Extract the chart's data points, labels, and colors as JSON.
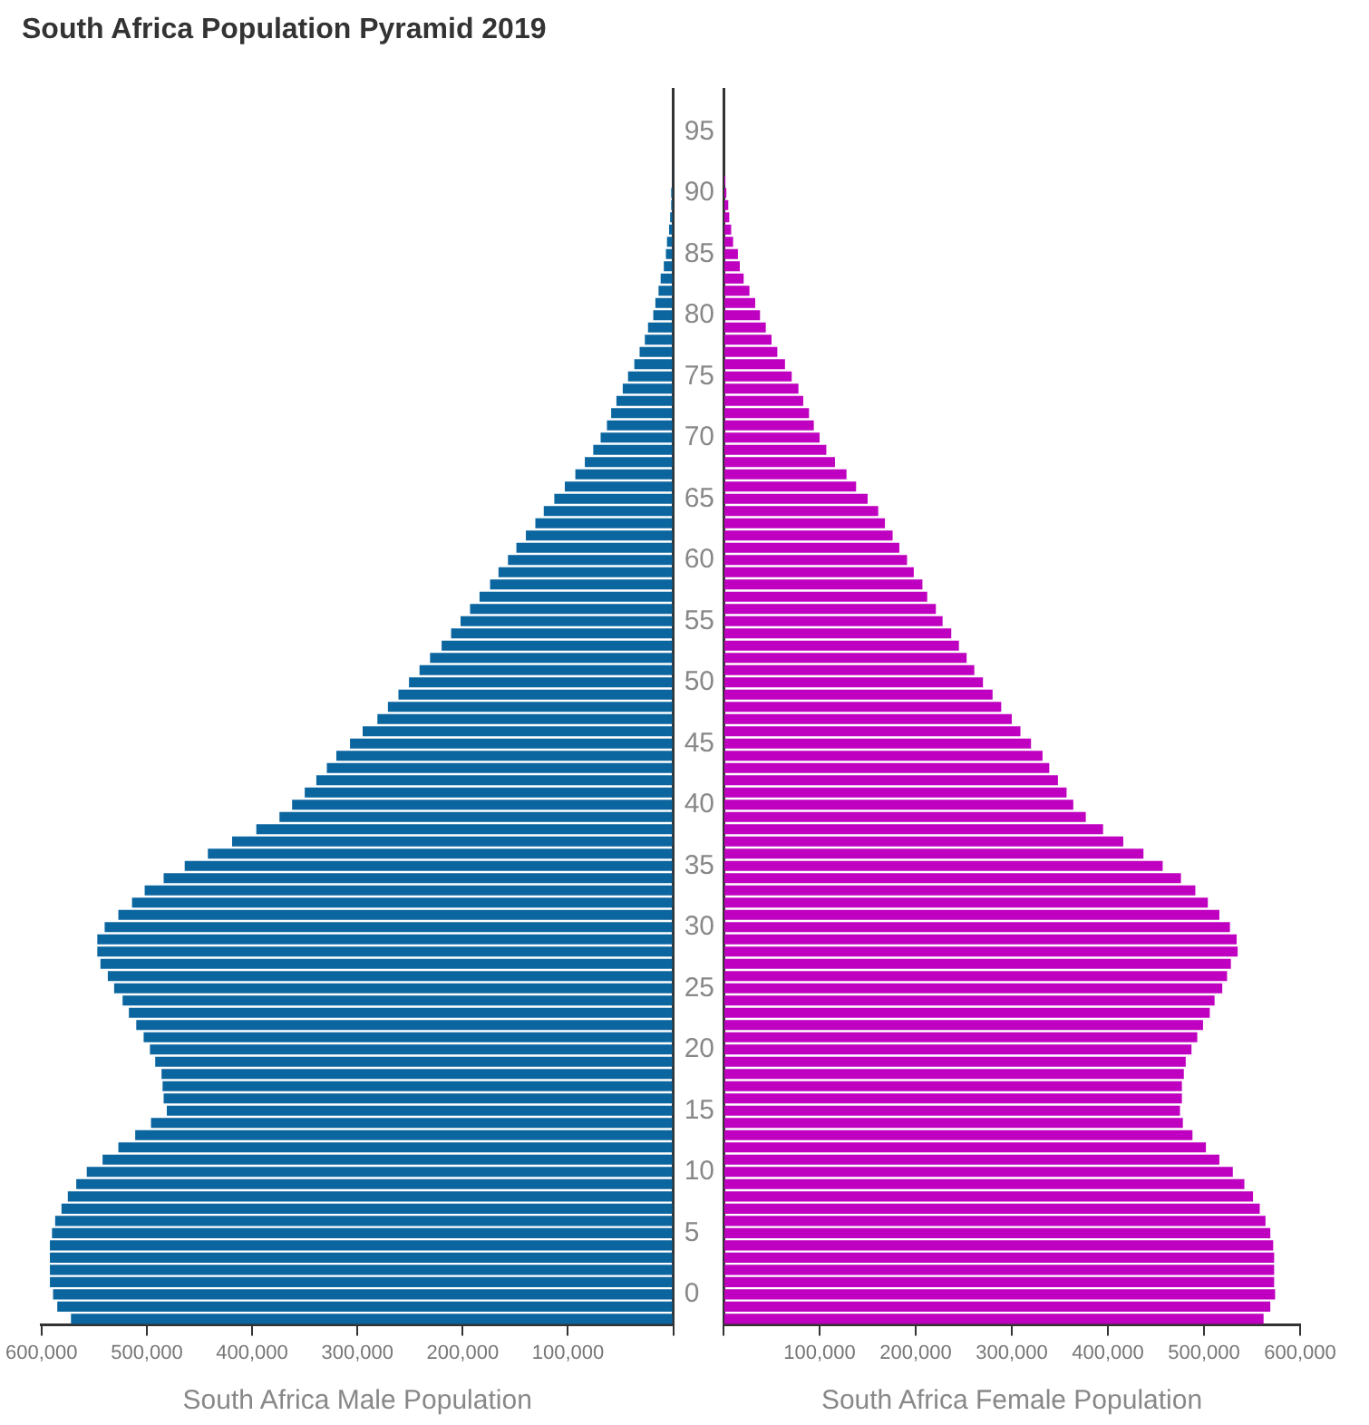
{
  "chart_data": [
    {
      "type": "bar",
      "orientation": "horizontal",
      "title": "South Africa Population Pyramid 2019",
      "xlabel": "South Africa Male Population",
      "color": "#0b66a0",
      "legend": false,
      "grid": false,
      "categories": [
        null,
        null,
        null,
        "95",
        null,
        null,
        null,
        null,
        "90",
        null,
        null,
        null,
        null,
        "85",
        null,
        null,
        null,
        null,
        "80",
        null,
        null,
        null,
        null,
        "75",
        null,
        null,
        null,
        null,
        "70",
        null,
        null,
        null,
        null,
        "65",
        null,
        null,
        null,
        null,
        "60",
        null,
        null,
        null,
        null,
        "55",
        null,
        null,
        null,
        null,
        "50",
        null,
        null,
        null,
        null,
        "45",
        null,
        null,
        null,
        null,
        "40",
        null,
        null,
        null,
        null,
        "35",
        null,
        null,
        null,
        null,
        "30",
        null,
        null,
        null,
        null,
        "25",
        null,
        null,
        null,
        null,
        "20",
        null,
        null,
        null,
        null,
        "15",
        null,
        null,
        null,
        null,
        "10",
        null,
        null,
        null,
        null,
        "5",
        null,
        null,
        null,
        null,
        "0",
        null,
        null
      ],
      "values": [
        0,
        0,
        0,
        0,
        0,
        0,
        1000,
        1000,
        2000,
        2000,
        3000,
        4000,
        6000,
        7000,
        9000,
        12000,
        14000,
        17000,
        19000,
        24000,
        27000,
        32000,
        37000,
        43000,
        48000,
        54000,
        59000,
        63000,
        69000,
        76000,
        84000,
        93000,
        103000,
        113000,
        123000,
        131000,
        140000,
        149000,
        157000,
        166000,
        174000,
        184000,
        193000,
        202000,
        211000,
        220000,
        231000,
        241000,
        251000,
        261000,
        271000,
        281000,
        295000,
        307000,
        320000,
        329000,
        339000,
        350000,
        362000,
        374000,
        396000,
        419000,
        442000,
        464000,
        484000,
        502000,
        514000,
        527000,
        540000,
        547000,
        547000,
        544000,
        537000,
        531000,
        523000,
        517000,
        510000,
        503000,
        497000,
        492000,
        486000,
        485000,
        484000,
        481000,
        496000,
        511000,
        527000,
        542000,
        557000,
        567000,
        575000,
        581000,
        587000,
        590000,
        592000,
        592000,
        592000,
        592000,
        589000,
        585000,
        572000
      ],
      "xlim": [
        600000,
        0
      ],
      "xticks": [
        {
          "value": 600000,
          "label": "600,000"
        },
        {
          "value": 500000,
          "label": "500,000"
        },
        {
          "value": 400000,
          "label": "400,000"
        },
        {
          "value": 300000,
          "label": "300,000"
        },
        {
          "value": 200000,
          "label": "200,000"
        },
        {
          "value": 100000,
          "label": "100,000"
        },
        {
          "value": 0,
          "label": null
        }
      ]
    },
    {
      "type": "bar",
      "orientation": "horizontal",
      "xlabel": "South Africa Female Population",
      "color": "#c000c0",
      "legend": false,
      "grid": false,
      "tick_labels": "x",
      "categories": [
        null,
        null,
        null,
        "95",
        null,
        null,
        null,
        null,
        "90",
        null,
        null,
        null,
        null,
        "85",
        null,
        null,
        null,
        null,
        "80",
        null,
        null,
        null,
        null,
        "75",
        null,
        null,
        null,
        null,
        "70",
        null,
        null,
        null,
        null,
        "65",
        null,
        null,
        null,
        null,
        "60",
        null,
        null,
        null,
        null,
        "55",
        null,
        null,
        null,
        null,
        "50",
        null,
        null,
        null,
        null,
        "45",
        null,
        null,
        null,
        null,
        "40",
        null,
        null,
        null,
        null,
        "35",
        null,
        null,
        null,
        null,
        "30",
        null,
        null,
        null,
        null,
        "25",
        null,
        null,
        null,
        null,
        "20",
        null,
        null,
        null,
        null,
        "15",
        null,
        null,
        null,
        null,
        "10",
        null,
        null,
        null,
        null,
        "5",
        null,
        null,
        null,
        null,
        "0",
        null,
        null
      ],
      "values": [
        0,
        0,
        0,
        0,
        0,
        0,
        null,
        2000,
        3000,
        5000,
        6000,
        8000,
        10000,
        15000,
        17000,
        21000,
        27000,
        33000,
        38000,
        44000,
        50000,
        56000,
        64000,
        71000,
        78000,
        83000,
        89000,
        94000,
        100000,
        107000,
        116000,
        128000,
        138000,
        150000,
        161000,
        168000,
        176000,
        183000,
        191000,
        198000,
        207000,
        212000,
        221000,
        228000,
        237000,
        245000,
        253000,
        261000,
        270000,
        280000,
        289000,
        300000,
        309000,
        320000,
        332000,
        339000,
        348000,
        357000,
        364000,
        377000,
        395000,
        416000,
        437000,
        457000,
        476000,
        491000,
        504000,
        516000,
        527000,
        534000,
        535000,
        528000,
        524000,
        519000,
        511000,
        506000,
        499000,
        493000,
        487000,
        481000,
        479000,
        477000,
        477000,
        475000,
        478000,
        488000,
        502000,
        516000,
        530000,
        542000,
        551000,
        558000,
        564000,
        569000,
        572000,
        573000,
        573000,
        573000,
        574000,
        569000,
        562000
      ],
      "xlim": [
        0,
        600000
      ],
      "xticks": [
        {
          "value": 0,
          "label": null
        },
        {
          "value": 100000,
          "label": "100,000"
        },
        {
          "value": 200000,
          "label": "200,000"
        },
        {
          "value": 300000,
          "label": "300,000"
        },
        {
          "value": 400000,
          "label": "400,000"
        },
        {
          "value": 500000,
          "label": "500,000"
        },
        {
          "value": 600000,
          "label": "600,000"
        }
      ]
    }
  ]
}
